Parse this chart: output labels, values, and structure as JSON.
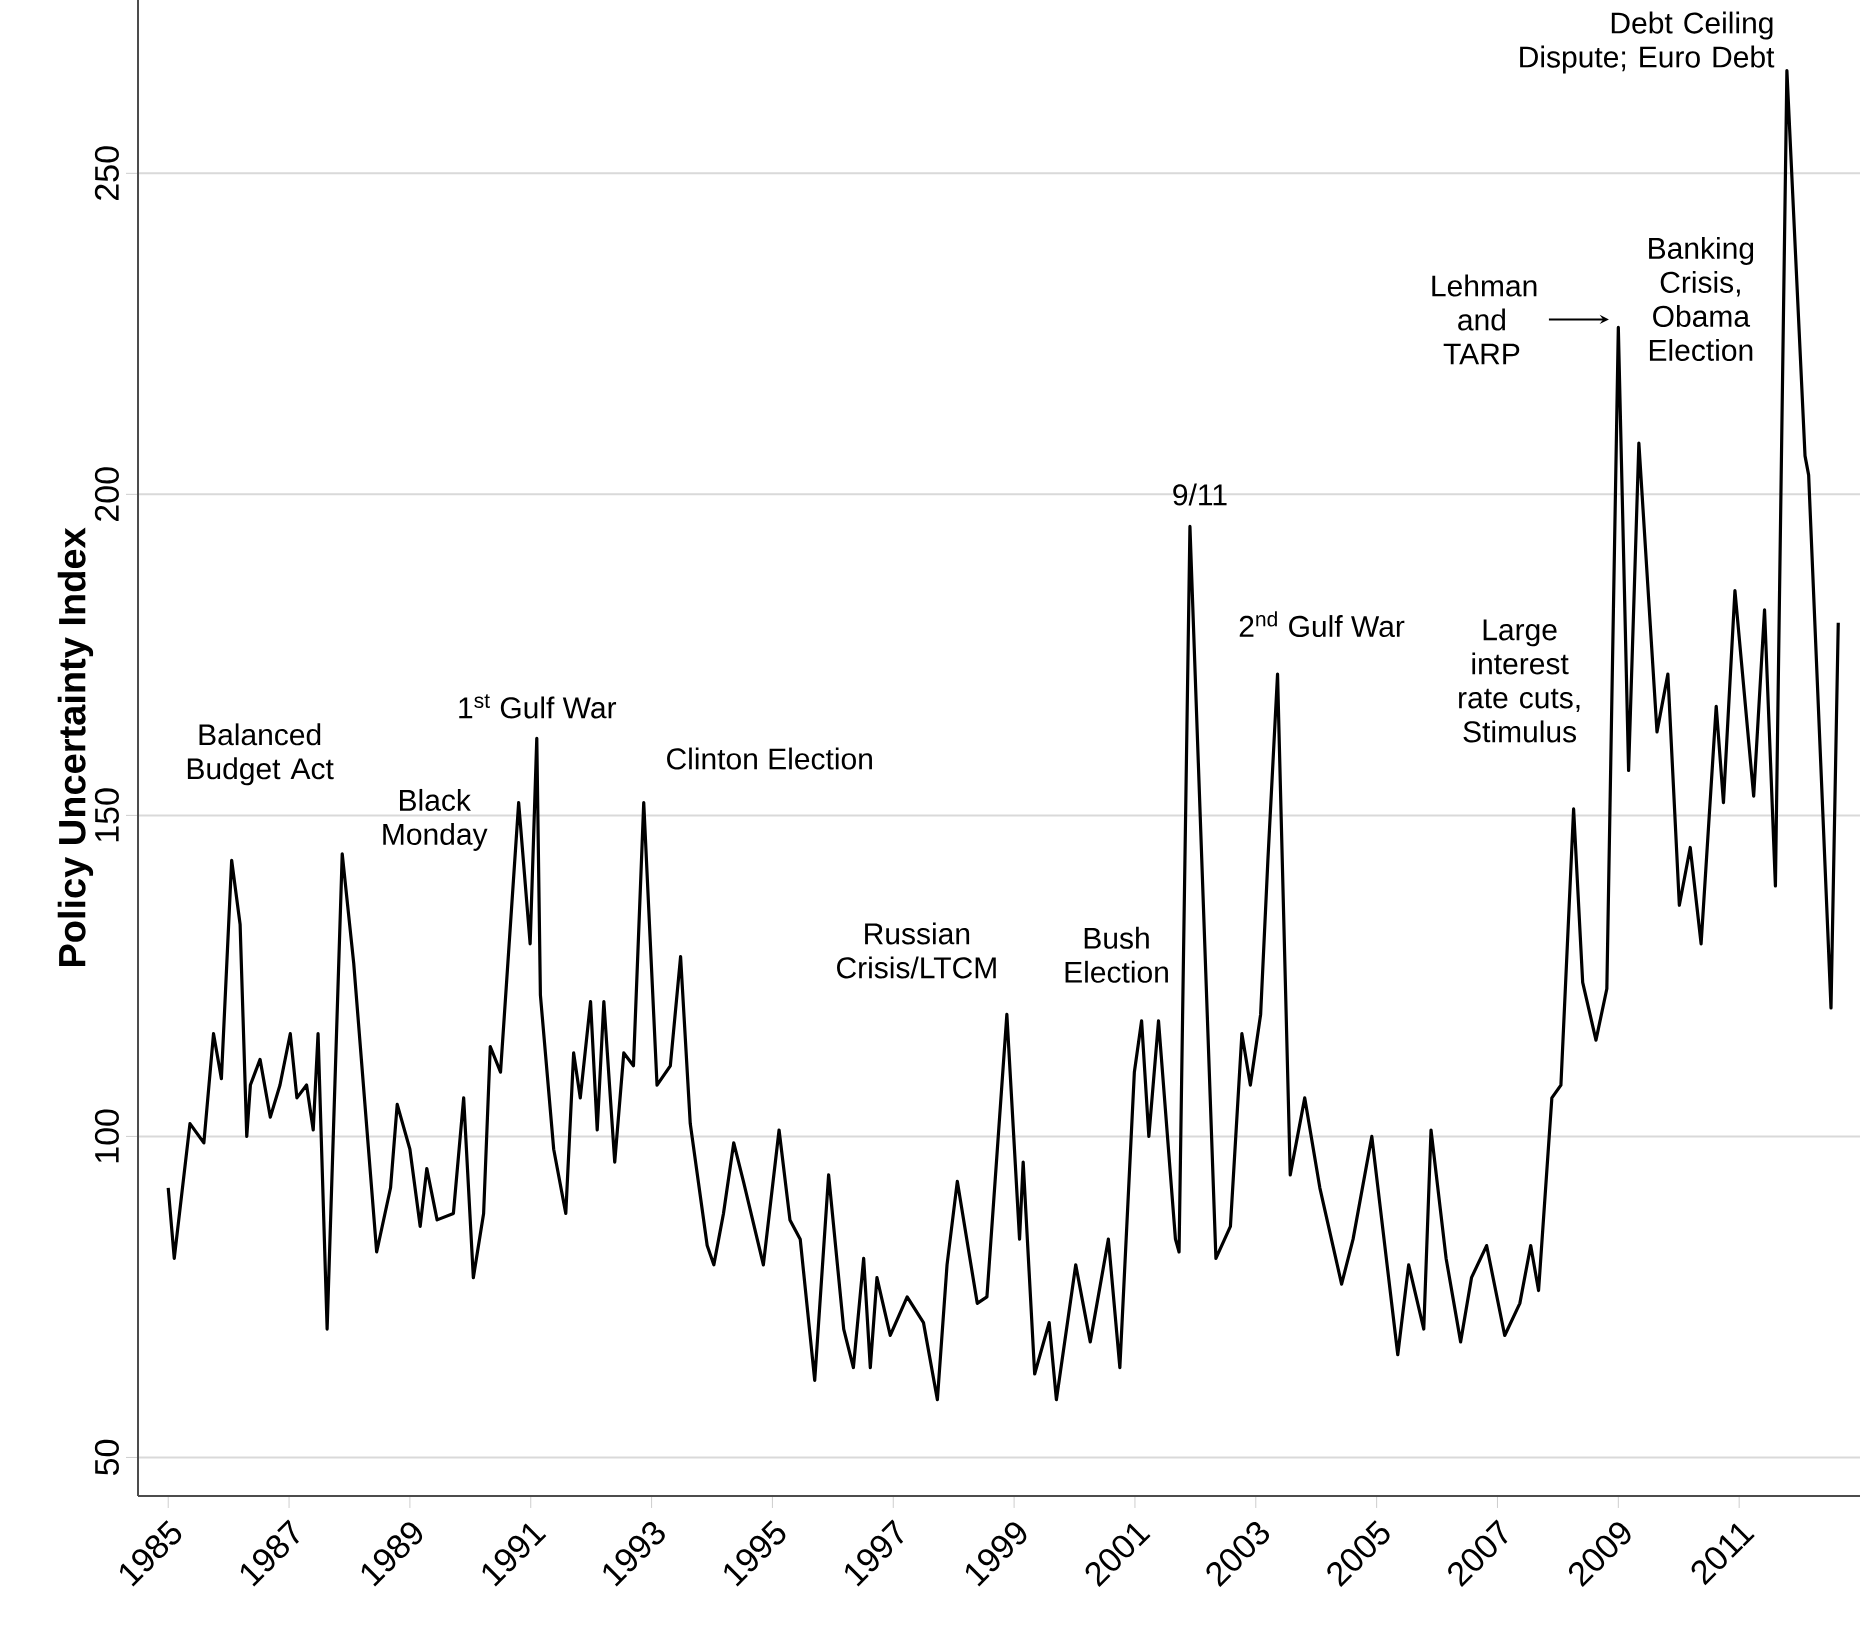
{
  "chart_data": {
    "type": "line",
    "ylabel": "Policy Uncertainty Index",
    "xlim": [
      1984.5,
      2013
    ],
    "ylim": [
      44,
      277
    ],
    "xticks": [
      1985,
      1987,
      1989,
      1991,
      1993,
      1995,
      1997,
      1999,
      2001,
      2003,
      2005,
      2007,
      2009,
      2011
    ],
    "yticks": [
      50,
      100,
      150,
      200,
      250
    ],
    "grid": "y",
    "series": [
      {
        "color": "#000000",
        "x": [
          1985.0,
          1985.1,
          1985.36,
          1985.59,
          1985.75,
          1985.88,
          1986.05,
          1986.19,
          1986.3,
          1986.36,
          1986.52,
          1986.69,
          1986.85,
          1987.02,
          1987.13,
          1987.29,
          1987.4,
          1987.48,
          1987.63,
          1987.88,
          1988.07,
          1988.45,
          1988.68,
          1988.79,
          1989.0,
          1989.17,
          1989.28,
          1989.45,
          1989.72,
          1989.89,
          1990.05,
          1990.22,
          1990.33,
          1990.5,
          1990.8,
          1990.99,
          1991.1,
          1991.16,
          1991.38,
          1991.58,
          1991.71,
          1991.82,
          1991.99,
          1992.1,
          1992.21,
          1992.39,
          1992.54,
          1992.7,
          1992.87,
          1993.09,
          1993.31,
          1993.48,
          1993.64,
          1993.92,
          1994.03,
          1994.19,
          1994.36,
          1994.52,
          1994.85,
          1995.11,
          1995.29,
          1995.46,
          1995.7,
          1995.93,
          1996.18,
          1996.34,
          1996.51,
          1996.62,
          1996.73,
          1996.95,
          1997.23,
          1997.5,
          1997.73,
          1997.89,
          1998.06,
          1998.39,
          1998.55,
          1998.88,
          1999.09,
          1999.15,
          1999.34,
          1999.58,
          1999.7,
          2000.02,
          2000.26,
          2000.56,
          2000.75,
          2000.99,
          2001.11,
          2001.23,
          2001.39,
          2001.67,
          2001.73,
          2001.91,
          2002.34,
          2002.58,
          2002.77,
          2002.91,
          2003.08,
          2003.2,
          2003.36,
          2003.57,
          2003.81,
          2004.06,
          2004.42,
          2004.61,
          2004.92,
          2005.35,
          2005.53,
          2005.78,
          2005.9,
          2006.15,
          2006.39,
          2006.57,
          2006.82,
          2007.12,
          2007.37,
          2007.55,
          2007.68,
          2007.9,
          2008.05,
          2008.26,
          2008.41,
          2008.63,
          2008.81,
          2009.0,
          2009.17,
          2009.34,
          2009.64,
          2009.82,
          2010.01,
          2010.19,
          2010.37,
          2010.62,
          2010.74,
          2010.93,
          2011.24,
          2011.42,
          2011.6,
          2011.79,
          2012.09,
          2012.15,
          2012.52,
          2012.64
        ],
        "values": [
          92,
          81,
          102,
          99,
          116,
          109,
          143,
          133,
          100,
          108,
          112,
          103,
          108,
          116,
          106,
          108,
          101,
          116,
          70,
          144,
          127,
          82,
          92,
          105,
          98,
          86,
          95,
          87,
          88,
          106,
          78,
          88,
          114,
          110,
          152,
          130,
          162,
          122,
          98,
          88,
          113,
          106,
          121,
          101,
          121,
          96,
          113,
          111,
          152,
          108,
          111,
          128,
          102,
          83,
          80,
          88,
          99,
          93,
          80,
          101,
          87,
          84,
          62,
          94,
          70,
          64,
          81,
          64,
          78,
          69,
          75,
          71,
          59,
          80,
          93,
          74,
          75,
          119,
          84,
          96,
          63,
          71,
          59,
          80,
          68,
          84,
          64,
          110,
          118,
          100,
          118,
          84,
          82,
          195,
          81,
          86,
          116,
          108,
          119,
          143,
          172,
          94,
          106,
          92,
          77,
          84,
          100,
          66,
          80,
          70,
          101,
          81,
          68,
          78,
          83,
          69,
          74,
          83,
          76,
          106,
          108,
          151,
          124,
          115,
          123,
          226,
          157,
          208,
          163,
          172,
          136,
          145,
          130,
          167,
          152,
          185,
          153,
          182,
          139,
          266,
          206,
          203,
          120,
          180
        ]
      }
    ],
    "annotations": [
      {
        "text": "Balanced Budget Act",
        "x": 1986.05,
        "y": 143
      },
      {
        "text": "Black Monday",
        "x": 1987.88,
        "y": 144
      },
      {
        "text": "1$^{st}$ Gulf War",
        "x": 1991.1,
        "y": 162
      },
      {
        "text": "Clinton Election",
        "x": 1992.87,
        "y": 152
      },
      {
        "text": "Russian Crisis/LTCM",
        "x": 1998.88,
        "y": 119
      },
      {
        "text": "Bush Election",
        "x": 2001.39,
        "y": 118
      },
      {
        "text": "9/11",
        "x": 2001.91,
        "y": 195
      },
      {
        "text": "2$^{nd}$ Gulf War",
        "x": 2003.36,
        "y": 172
      },
      {
        "text": "Large interest rate cuts, Stimulus",
        "x": 2008.26,
        "y": 151
      },
      {
        "text": "Lehman and TARP",
        "x": 2009.0,
        "y": 226
      },
      {
        "text": "Banking Crisis, Obama Election",
        "x": 2009.34,
        "y": 208
      },
      {
        "text": "Debt Ceiling Dispute; Euro Debt",
        "x": 2011.79,
        "y": 266
      }
    ]
  }
}
